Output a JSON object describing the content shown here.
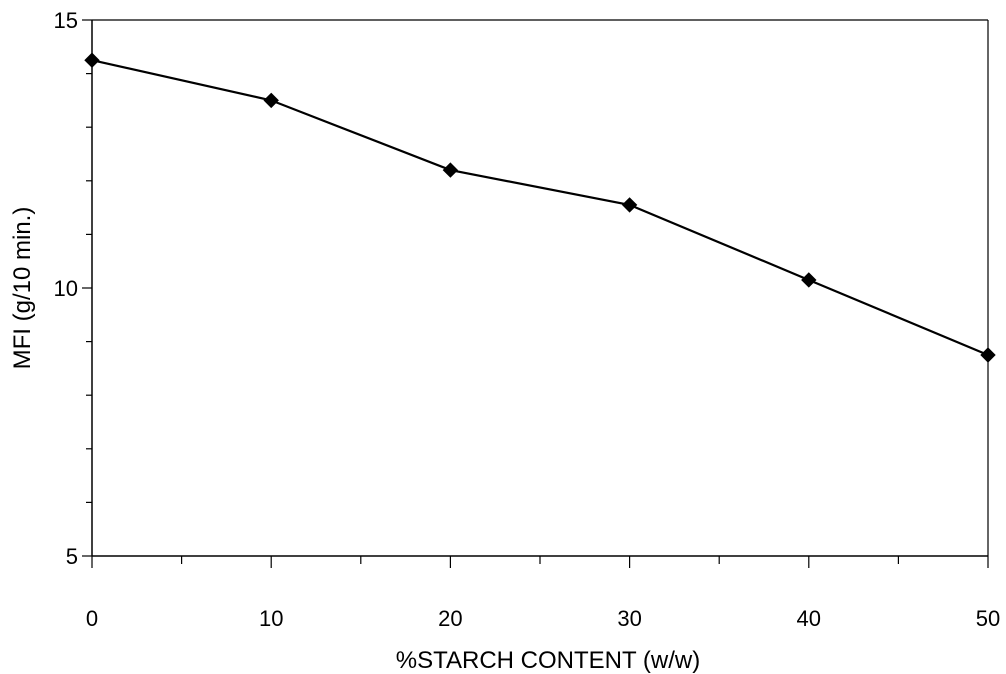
{
  "chart_data": {
    "type": "line",
    "title": "",
    "xlabel": "%STARCH CONTENT (w/w)",
    "ylabel": "MFI (g/10 min.)",
    "x": [
      0,
      10,
      20,
      30,
      40,
      50
    ],
    "series": [
      {
        "values": [
          14.25,
          13.5,
          12.2,
          11.55,
          10.15,
          8.75
        ],
        "marker": "diamond",
        "color": "#000000"
      }
    ],
    "xlim": [
      0,
      50
    ],
    "ylim": [
      5,
      15
    ],
    "x_ticks": [
      "0",
      "10",
      "20",
      "30",
      "40",
      "50"
    ],
    "y_ticks": [
      "5",
      "10",
      "15"
    ],
    "grid": false,
    "legend": "none"
  }
}
